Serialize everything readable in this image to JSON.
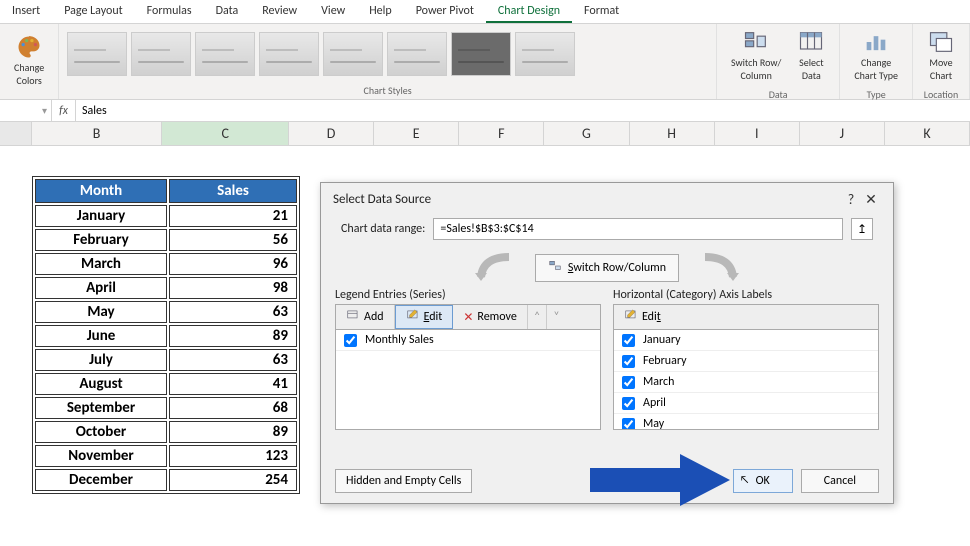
{
  "ribbon": {
    "tabs": [
      "Insert",
      "Page Layout",
      "Formulas",
      "Data",
      "Review",
      "View",
      "Help",
      "Power Pivot",
      "Chart Design",
      "Format"
    ],
    "active_tab": "Chart Design",
    "groups": {
      "change_colors": "Change\nColors",
      "chart_styles": "Chart Styles",
      "data": "Data",
      "switch_row_col": "Switch Row/\nColumn",
      "select_data": "Select\nData",
      "type": "Type",
      "change_chart_type": "Change\nChart Type",
      "location": "Location",
      "move_chart": "Move\nChart"
    }
  },
  "formula": {
    "name": "",
    "fx": "fx",
    "value": "Sales"
  },
  "columns": [
    "B",
    "C",
    "D",
    "E",
    "F",
    "G",
    "H",
    "I",
    "J",
    "K"
  ],
  "table": {
    "header_month": "Month",
    "header_sales": "Sales",
    "header_bg": "#2f6fb5",
    "rows": [
      {
        "m": "January",
        "v": "21"
      },
      {
        "m": "February",
        "v": "56"
      },
      {
        "m": "March",
        "v": "96"
      },
      {
        "m": "April",
        "v": "98"
      },
      {
        "m": "May",
        "v": "63"
      },
      {
        "m": "June",
        "v": "89"
      },
      {
        "m": "July",
        "v": "63"
      },
      {
        "m": "August",
        "v": "41"
      },
      {
        "m": "September",
        "v": "68"
      },
      {
        "m": "October",
        "v": "89"
      },
      {
        "m": "November",
        "v": "123"
      },
      {
        "m": "December",
        "v": "254"
      }
    ]
  },
  "dialog": {
    "title": "Select Data Source",
    "help": "?",
    "close": "✕",
    "range_label": "Chart data range:",
    "range_value": "=Sales!$B$3:$C$14",
    "switch_btn": "Switch Row/Column",
    "legend_label": "Legend Entries (Series)",
    "axis_label": "Horizontal (Category) Axis Labels",
    "btn_add": "Add",
    "btn_edit": "Edit",
    "btn_remove": "Remove",
    "btn_edit2": "Edit",
    "series": [
      "Monthly Sales"
    ],
    "categories": [
      "January",
      "February",
      "March",
      "April",
      "May"
    ],
    "hidden_cells": "Hidden and Empty Cells",
    "ok": "OK",
    "cancel": "Cancel"
  },
  "colors": {
    "accent": "#2f6fb5",
    "ribbon_active": "#0f703b",
    "arrow": "#1b4fb5"
  }
}
